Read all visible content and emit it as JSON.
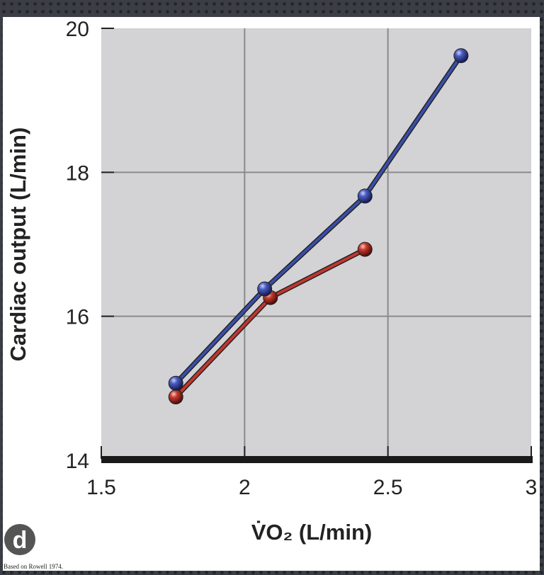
{
  "chart_data": {
    "type": "line",
    "xlabel": "V̇O₂ (L/min)",
    "xlabel_main": "VO",
    "xlabel_sub": "2",
    "xlabel_rest": " (L/min)",
    "ylabel": "Cardiac output (L/min)",
    "xlim": [
      1.5,
      3
    ],
    "ylim": [
      14,
      20
    ],
    "xticks": [
      1.5,
      2,
      2.5,
      3
    ],
    "xtick_labels": [
      "1.5",
      "2",
      "2.5",
      "3"
    ],
    "yticks": [
      14,
      16,
      18,
      20
    ],
    "ytick_labels": [
      "14",
      "16",
      "18",
      "20"
    ],
    "grid": true,
    "series": [
      {
        "color": "#3a4ea8",
        "x": [
          1.76,
          2.07,
          2.42,
          2.755
        ],
        "y": [
          15.07,
          16.38,
          17.67,
          19.62
        ]
      },
      {
        "color": "#c0372f",
        "x": [
          1.76,
          2.09,
          2.42
        ],
        "y": [
          14.88,
          16.26,
          16.93
        ]
      }
    ],
    "panel_label": "d",
    "source_note": "Based on Rowell 1974."
  }
}
